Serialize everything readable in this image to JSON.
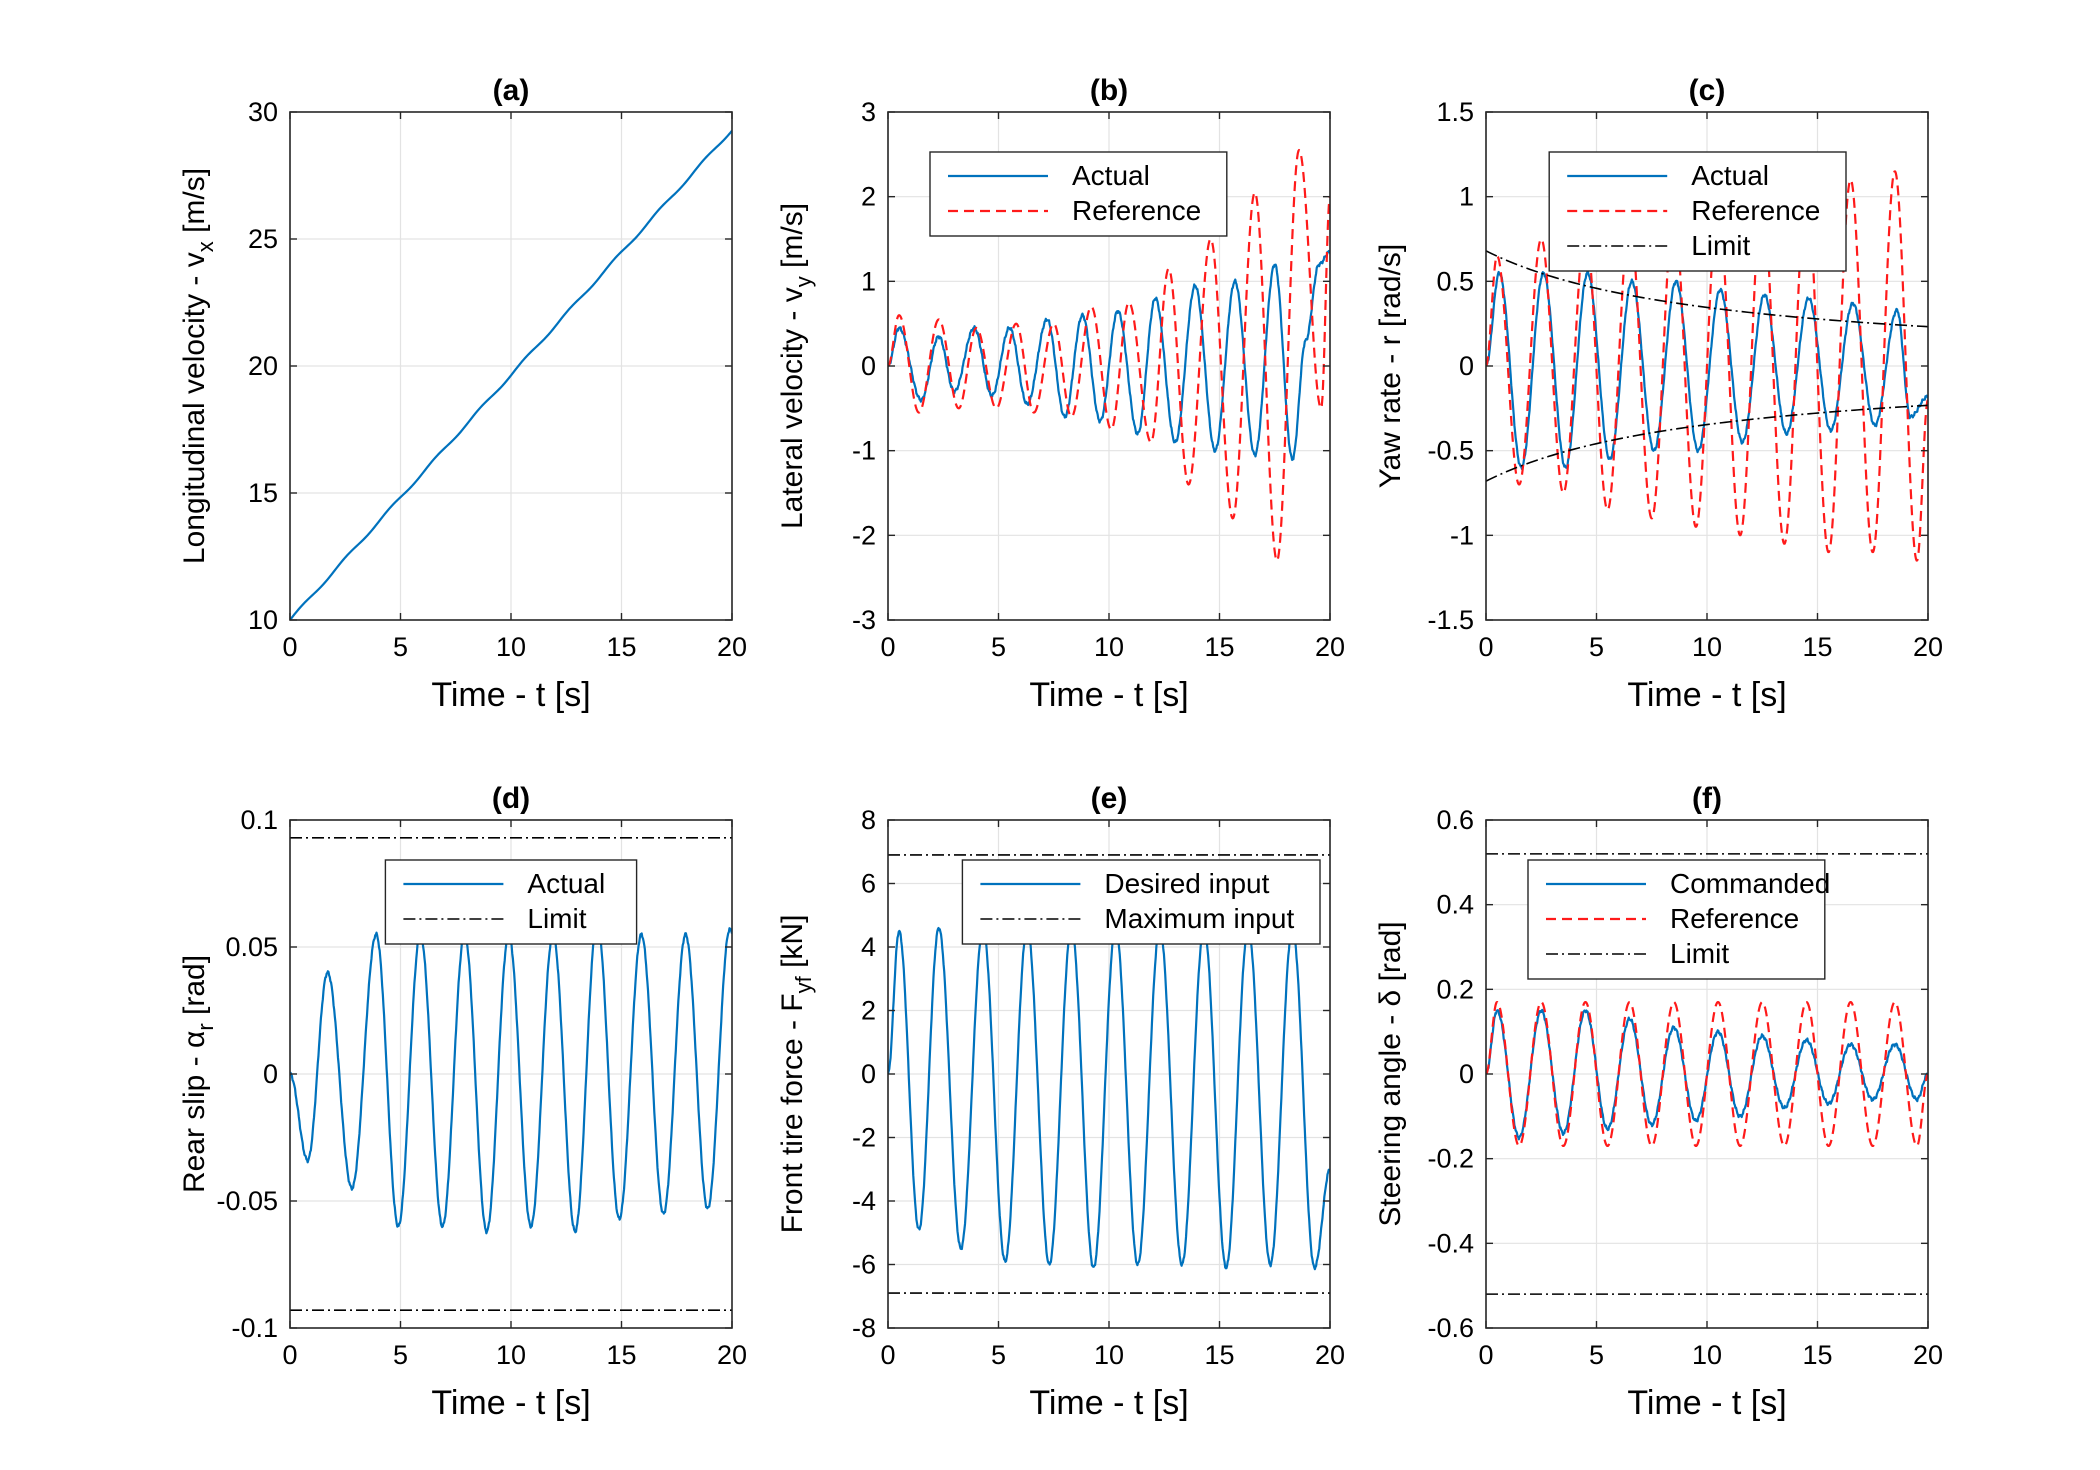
{
  "colors": {
    "actual": "#0072bd",
    "reference": "#ff1a1a",
    "limit": "#000000"
  },
  "chart_data": [
    {
      "id": "a",
      "type": "line",
      "title": "(a)",
      "xlabel": "Time - t [s]",
      "ylabel": "Longitudinal velocity - v",
      "ylabel_sub": "x",
      "ylabel_unit": " [m/s]",
      "xlim": [
        0,
        20
      ],
      "ylim": [
        10,
        30
      ],
      "xticks": [
        0,
        5,
        10,
        15,
        20
      ],
      "yticks": [
        10,
        15,
        20,
        25,
        30
      ],
      "ytick_labels": [
        "10",
        "15",
        "20",
        "25",
        "30"
      ],
      "grid": true,
      "legend": null,
      "series": [
        {
          "name": "Actual",
          "style": "actual",
          "x": [
            0,
            20
          ],
          "y": [
            10,
            29.3
          ]
        }
      ]
    },
    {
      "id": "b",
      "type": "line",
      "title": "(b)",
      "xlabel": "Time - t [s]",
      "ylabel": "Lateral velocity - v",
      "ylabel_sub": "y",
      "ylabel_unit": " [m/s]",
      "xlim": [
        0,
        20
      ],
      "ylim": [
        -3,
        3
      ],
      "xticks": [
        0,
        5,
        10,
        15,
        20
      ],
      "yticks": [
        -3,
        -2,
        -1,
        0,
        1,
        2,
        3
      ],
      "ytick_labels": [
        "-3",
        "-2",
        "-1",
        "0",
        "1",
        "2",
        "3"
      ],
      "grid": true,
      "legend": {
        "entries": [
          "Actual",
          "Reference"
        ],
        "placement": "top-left"
      },
      "series": [
        {
          "name": "Actual",
          "style": "actual",
          "x": [
            0,
            0.5,
            1.5,
            2.3,
            3.0,
            3.9,
            4.7,
            5.5,
            6.3,
            7.2,
            8.0,
            8.8,
            9.6,
            10.4,
            11.3,
            12.1,
            13.0,
            13.9,
            14.8,
            15.7,
            16.6,
            17.5,
            18.3,
            18.9,
            19.5,
            20.0
          ],
          "y": [
            0,
            0.45,
            -0.4,
            0.35,
            -0.3,
            0.45,
            -0.35,
            0.45,
            -0.45,
            0.55,
            -0.6,
            0.6,
            -0.65,
            0.65,
            -0.8,
            0.8,
            -0.9,
            0.95,
            -1.0,
            1.0,
            -1.05,
            1.2,
            -1.1,
            0.3,
            1.2,
            1.35
          ]
        },
        {
          "name": "Reference",
          "style": "reference",
          "x": [
            0,
            0.5,
            1.4,
            2.3,
            3.2,
            4.0,
            4.9,
            5.8,
            6.6,
            7.5,
            8.3,
            9.2,
            10.1,
            10.9,
            11.9,
            12.7,
            13.6,
            14.6,
            15.6,
            16.6,
            17.6,
            18.6,
            19.6,
            20.0
          ],
          "y": [
            0,
            0.6,
            -0.55,
            0.55,
            -0.5,
            0.45,
            -0.5,
            0.5,
            -0.55,
            0.5,
            -0.6,
            0.7,
            -0.75,
            0.75,
            -0.9,
            1.15,
            -1.4,
            1.5,
            -1.8,
            2.05,
            -2.3,
            2.55,
            -0.5,
            2.0
          ]
        }
      ]
    },
    {
      "id": "c",
      "type": "line",
      "title": "(c)",
      "xlabel": "Time - t [s]",
      "ylabel": "Yaw rate - r [rad/s]",
      "ylabel_sub": "",
      "ylabel_unit": "",
      "xlim": [
        0,
        20
      ],
      "ylim": [
        -1.5,
        1.5
      ],
      "xticks": [
        0,
        5,
        10,
        15,
        20
      ],
      "yticks": [
        -1.5,
        -1,
        -0.5,
        0,
        0.5,
        1,
        1.5
      ],
      "ytick_labels": [
        "-1.5",
        "-1",
        "-0.5",
        "0",
        "0.5",
        "1",
        "1.5"
      ],
      "grid": true,
      "legend": {
        "entries": [
          "Actual",
          "Reference",
          "Limit"
        ],
        "placement": "top-right"
      },
      "series": [
        {
          "name": "Actual",
          "style": "actual",
          "x": [
            0,
            0.6,
            1.6,
            2.6,
            3.6,
            4.6,
            5.6,
            6.6,
            7.6,
            8.6,
            9.6,
            10.6,
            11.6,
            12.6,
            13.6,
            14.6,
            15.6,
            16.6,
            17.6,
            18.6,
            19.2,
            20.0
          ],
          "y": [
            0,
            0.55,
            -0.6,
            0.55,
            -0.6,
            0.55,
            -0.55,
            0.5,
            -0.5,
            0.5,
            -0.5,
            0.45,
            -0.45,
            0.42,
            -0.4,
            0.4,
            -0.38,
            0.37,
            -0.35,
            0.33,
            -0.3,
            -0.18
          ]
        },
        {
          "name": "Reference",
          "style": "reference",
          "x": [
            0,
            0.5,
            1.5,
            2.5,
            3.5,
            4.5,
            5.5,
            6.5,
            7.5,
            8.5,
            9.5,
            10.5,
            11.5,
            12.5,
            13.5,
            14.5,
            15.5,
            16.5,
            17.5,
            18.5,
            19.5,
            20.0
          ],
          "y": [
            0,
            0.65,
            -0.7,
            0.75,
            -0.75,
            0.8,
            -0.85,
            0.85,
            -0.9,
            0.9,
            -0.95,
            0.95,
            -1.0,
            1.0,
            -1.05,
            1.05,
            -1.1,
            1.1,
            -1.1,
            1.15,
            -1.15,
            -0.2
          ]
        },
        {
          "name": "Limit",
          "style": "limit",
          "func": "k/x",
          "k": 6.8,
          "sign": 1,
          "v0": 10,
          "a": 0.965
        },
        {
          "name": "Limit",
          "style": "limit",
          "func": "k/x",
          "k": 6.8,
          "sign": -1,
          "v0": 10,
          "a": 0.965
        }
      ]
    },
    {
      "id": "d",
      "type": "line",
      "title": "(d)",
      "xlabel": "Time - t [s]",
      "ylabel": "Rear slip - α",
      "ylabel_sub": "r",
      "ylabel_unit": " [rad]",
      "xlim": [
        0,
        20
      ],
      "ylim": [
        -0.1,
        0.1
      ],
      "xticks": [
        0,
        5,
        10,
        15,
        20
      ],
      "yticks": [
        -0.1,
        -0.05,
        0,
        0.05,
        0.1
      ],
      "ytick_labels": [
        "-0.1",
        "-0.05",
        "0",
        "0.05",
        "0.1"
      ],
      "grid": true,
      "legend": {
        "entries": [
          "Actual",
          "Limit"
        ],
        "placement": "top-center"
      },
      "series": [
        {
          "name": "Actual",
          "style": "actual",
          "x": [
            0,
            0.8,
            1.7,
            2.8,
            3.9,
            4.9,
            5.9,
            6.9,
            7.9,
            8.9,
            9.9,
            10.9,
            11.9,
            12.9,
            13.9,
            14.9,
            15.9,
            16.9,
            17.9,
            18.9,
            19.9,
            20.0
          ],
          "y": [
            0,
            -0.034,
            0.04,
            -0.045,
            0.055,
            -0.06,
            0.055,
            -0.06,
            0.055,
            -0.062,
            0.055,
            -0.06,
            0.055,
            -0.062,
            0.06,
            -0.057,
            0.055,
            -0.055,
            0.055,
            -0.053,
            0.057,
            0.056
          ]
        },
        {
          "name": "Limit",
          "style": "limit",
          "func": "const",
          "value": 0.093
        },
        {
          "name": "Limit",
          "style": "limit",
          "func": "const",
          "value": -0.093
        }
      ]
    },
    {
      "id": "e",
      "type": "line",
      "title": "(e)",
      "xlabel": "Time - t [s]",
      "ylabel": "Front tire force - F",
      "ylabel_sub": "yf",
      "ylabel_unit": " [kN]",
      "xlim": [
        0,
        20
      ],
      "ylim": [
        -8,
        8
      ],
      "xticks": [
        0,
        5,
        10,
        15,
        20
      ],
      "yticks": [
        -8,
        -6,
        -4,
        -2,
        0,
        2,
        4,
        6,
        8
      ],
      "ytick_labels": [
        "-8",
        "-6",
        "-4",
        "-2",
        "0",
        "2",
        "4",
        "6",
        "8"
      ],
      "grid": true,
      "legend": {
        "entries": [
          "Desired input",
          "Maximum input"
        ],
        "placement": "top-right"
      },
      "series": [
        {
          "name": "Desired input",
          "style": "actual",
          "x": [
            0,
            0.5,
            1.4,
            2.3,
            3.3,
            4.3,
            5.3,
            6.3,
            7.3,
            8.3,
            9.3,
            10.3,
            11.3,
            12.3,
            13.3,
            14.3,
            15.3,
            16.3,
            17.3,
            18.3,
            19.3,
            20.0
          ],
          "y": [
            0,
            4.5,
            -4.9,
            4.6,
            -5.5,
            4.6,
            -5.9,
            4.6,
            -6.0,
            4.6,
            -6.1,
            4.6,
            -6.0,
            4.6,
            -6.0,
            4.6,
            -6.1,
            4.6,
            -6.0,
            4.6,
            -6.1,
            -3.0
          ]
        },
        {
          "name": "Maximum input",
          "style": "limit",
          "func": "const",
          "value": 6.9
        },
        {
          "name": "Maximum input",
          "style": "limit",
          "func": "const",
          "value": -6.9
        }
      ]
    },
    {
      "id": "f",
      "type": "line",
      "title": "(f)",
      "xlabel": "Time - t [s]",
      "ylabel": "Steering angle - δ [rad]",
      "ylabel_sub": "",
      "ylabel_unit": "",
      "xlim": [
        0,
        20
      ],
      "ylim": [
        -0.6,
        0.6
      ],
      "xticks": [
        0,
        5,
        10,
        15,
        20
      ],
      "yticks": [
        -0.6,
        -0.4,
        -0.2,
        0,
        0.2,
        0.4,
        0.6
      ],
      "ytick_labels": [
        "-0.6",
        "-0.4",
        "-0.2",
        "0",
        "0.2",
        "0.4",
        "0.6"
      ],
      "grid": true,
      "legend": {
        "entries": [
          "Commanded",
          "Reference",
          "Limit"
        ],
        "placement": "top-right"
      },
      "series": [
        {
          "name": "Commanded",
          "style": "actual",
          "x": [
            0,
            0.5,
            1.5,
            2.5,
            3.5,
            4.5,
            5.5,
            6.5,
            7.5,
            8.5,
            9.5,
            10.5,
            11.5,
            12.5,
            13.5,
            14.5,
            15.5,
            16.5,
            17.5,
            18.5,
            19.5,
            20.0
          ],
          "y": [
            0,
            0.15,
            -0.15,
            0.15,
            -0.14,
            0.15,
            -0.13,
            0.13,
            -0.12,
            0.11,
            -0.11,
            0.1,
            -0.1,
            0.09,
            -0.08,
            0.08,
            -0.07,
            0.07,
            -0.06,
            0.07,
            -0.06,
            0.0
          ]
        },
        {
          "name": "Reference",
          "style": "reference",
          "x": [
            0,
            0.5,
            1.5,
            2.5,
            3.5,
            4.5,
            5.5,
            6.5,
            7.5,
            8.5,
            9.5,
            10.5,
            11.5,
            12.5,
            13.5,
            14.5,
            15.5,
            16.5,
            17.5,
            18.5,
            19.5,
            20.0
          ],
          "y": [
            0,
            0.17,
            -0.17,
            0.17,
            -0.17,
            0.17,
            -0.17,
            0.17,
            -0.17,
            0.17,
            -0.17,
            0.17,
            -0.17,
            0.17,
            -0.17,
            0.17,
            -0.17,
            0.17,
            -0.17,
            0.17,
            -0.17,
            0.0
          ]
        },
        {
          "name": "Limit",
          "style": "limit",
          "func": "const",
          "value": 0.52
        },
        {
          "name": "Limit",
          "style": "limit",
          "func": "const",
          "value": -0.52
        }
      ]
    }
  ]
}
